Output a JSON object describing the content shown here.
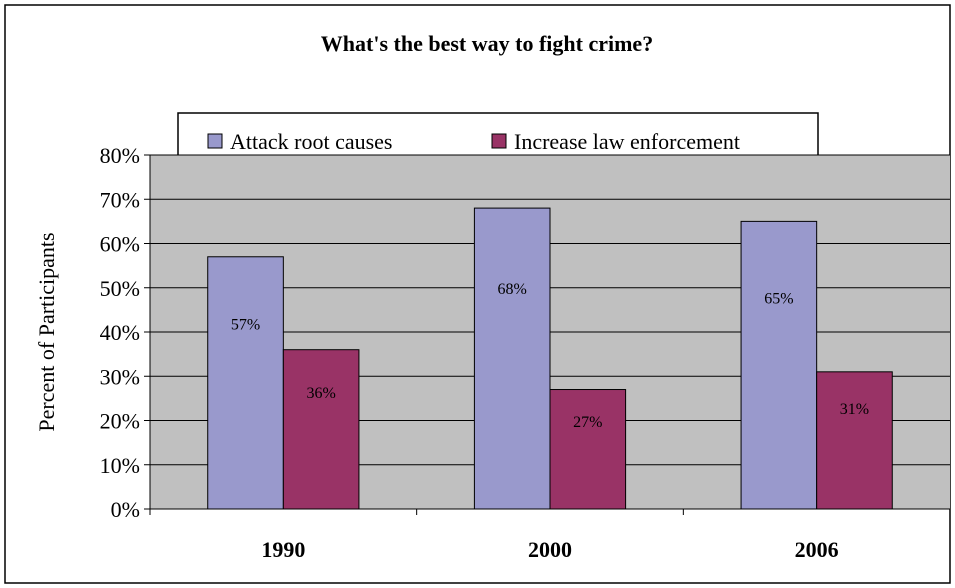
{
  "chart_data": {
    "type": "bar",
    "title": "What's the best way to fight crime?",
    "ylabel": "Percent of Participants",
    "xlabel": "",
    "categories": [
      "1990",
      "2000",
      "2006"
    ],
    "series": [
      {
        "name": "Attack root causes",
        "values": [
          57,
          68,
          65
        ],
        "labels": [
          "57%",
          "68%",
          "65%"
        ],
        "color": "#9999cc"
      },
      {
        "name": "Increase law enforcement",
        "values": [
          36,
          27,
          31
        ],
        "labels": [
          "36%",
          "27%",
          "31%"
        ],
        "color": "#993366"
      }
    ],
    "ylim": [
      0,
      80
    ],
    "yticks": [
      "0%",
      "10%",
      "20%",
      "30%",
      "40%",
      "50%",
      "60%",
      "70%",
      "80%"
    ],
    "grid": true,
    "plot_background": "#c0c0c0",
    "legend": "top"
  }
}
